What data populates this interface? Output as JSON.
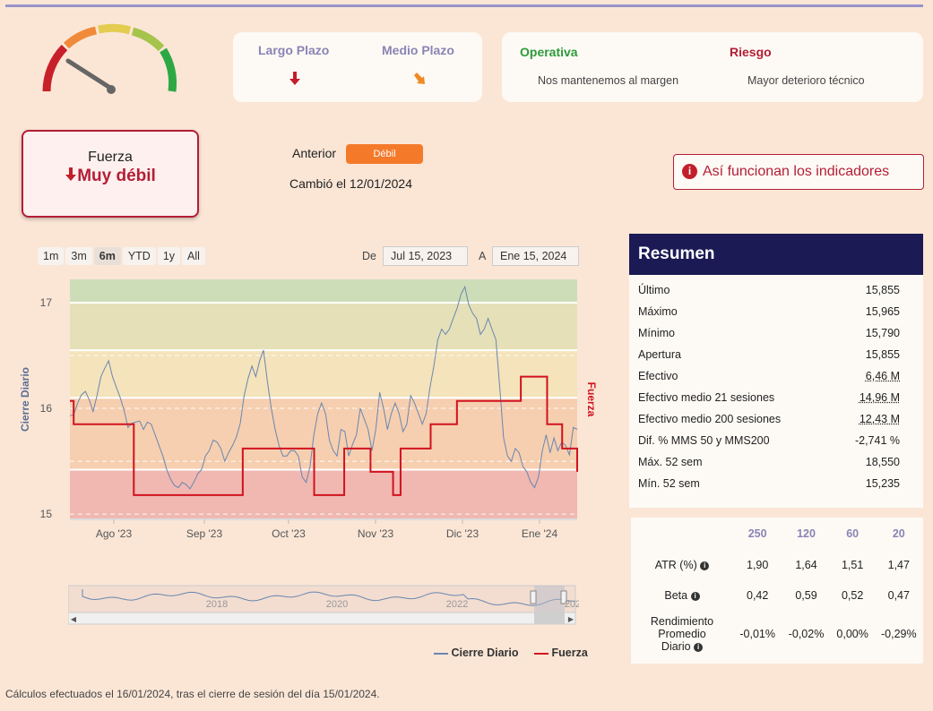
{
  "kpi": {
    "largo_plazo": "Largo Plazo",
    "medio_plazo": "Medio Plazo",
    "operativa_title": "Operativa",
    "operativa_text": "Nos mantenemos al margen",
    "riesgo_title": "Riesgo",
    "riesgo_text": "Mayor deterioro técnico",
    "colors": {
      "operativa": "#2e9a3a",
      "riesgo": "#b31e35",
      "down_red": "#c21f2b",
      "down_orange": "#f08a24"
    }
  },
  "fuerza": {
    "label": "Fuerza",
    "value": "Muy débil",
    "anterior_label": "Anterior",
    "anterior_value": "Débil",
    "cambio": "Cambió el 12/01/2024"
  },
  "link_indicadores": "Así funcionan los indicadores",
  "range_buttons": [
    "1m",
    "3m",
    "6m",
    "YTD",
    "1y",
    "All"
  ],
  "range_active": "6m",
  "date_range": {
    "from_label": "De",
    "from": "Jul 15, 2023",
    "to_label": "A",
    "to": "Ene 15, 2024"
  },
  "chart_data": {
    "type": "line",
    "ylabel": "Cierre Diario",
    "ylabel_right": "Fuerza",
    "y_ticks": [
      "15",
      "16",
      "17"
    ],
    "ylim": [
      14.95,
      17.22
    ],
    "x_ticks": [
      "Ago '23",
      "Sep '23",
      "Oct '23",
      "Nov '23",
      "Dic '23",
      "Ene '24"
    ],
    "bands": [
      {
        "from": 17.0,
        "to": 17.22,
        "color": "#cdddb8"
      },
      {
        "from": 16.55,
        "to": 17.0,
        "color": "#e5e0b8"
      },
      {
        "from": 16.1,
        "to": 16.55,
        "color": "#f4e3bb"
      },
      {
        "from": 15.42,
        "to": 16.1,
        "color": "#f6cfb0"
      },
      {
        "from": 14.95,
        "to": 15.42,
        "color": "#f0b8b0"
      }
    ],
    "series": [
      {
        "name": "Cierre Diario",
        "color": "#6a86b0",
        "values": [
          15.93,
          15.94,
          16.05,
          16.13,
          16.16,
          16.08,
          15.97,
          16.12,
          16.3,
          16.38,
          16.45,
          16.3,
          16.2,
          16.1,
          15.98,
          15.82,
          15.86,
          15.87,
          15.88,
          15.8,
          15.87,
          15.85,
          15.75,
          15.65,
          15.55,
          15.42,
          15.33,
          15.27,
          15.25,
          15.3,
          15.28,
          15.24,
          15.3,
          15.38,
          15.42,
          15.55,
          15.6,
          15.7,
          15.68,
          15.62,
          15.5,
          15.58,
          15.65,
          15.73,
          15.86,
          16.12,
          16.28,
          16.4,
          16.3,
          16.45,
          16.55,
          16.25,
          16.0,
          15.8,
          15.65,
          15.55,
          15.55,
          15.6,
          15.6,
          15.55,
          15.35,
          15.3,
          15.45,
          15.75,
          15.95,
          16.05,
          15.95,
          15.7,
          15.6,
          15.55,
          15.8,
          15.78,
          15.55,
          15.66,
          15.75,
          16.0,
          15.9,
          15.8,
          15.6,
          15.8,
          16.15,
          16.0,
          15.8,
          15.95,
          16.05,
          15.95,
          15.78,
          15.85,
          16.12,
          16.05,
          15.95,
          15.85,
          15.95,
          16.2,
          16.4,
          16.65,
          16.75,
          16.7,
          16.75,
          16.85,
          16.95,
          17.08,
          17.15,
          16.98,
          16.9,
          16.85,
          16.7,
          16.75,
          16.85,
          16.75,
          16.65,
          16.2,
          15.72,
          15.55,
          15.5,
          15.62,
          15.58,
          15.45,
          15.4,
          15.3,
          15.25,
          15.35,
          15.6,
          15.75,
          15.58,
          15.72,
          15.6,
          15.68,
          15.65,
          15.56,
          15.82,
          15.8
        ]
      },
      {
        "name": "Fuerza",
        "color": "#d1121f",
        "values": [
          16.07,
          15.85,
          15.85,
          15.85,
          15.85,
          15.85,
          15.85,
          15.85,
          15.85,
          15.85,
          15.85,
          15.85,
          15.85,
          15.85,
          15.85,
          15.85,
          15.85,
          15.18,
          15.18,
          15.18,
          15.18,
          15.18,
          15.18,
          15.18,
          15.18,
          15.18,
          15.18,
          15.18,
          15.18,
          15.18,
          15.18,
          15.18,
          15.18,
          15.18,
          15.18,
          15.18,
          15.18,
          15.18,
          15.18,
          15.18,
          15.18,
          15.18,
          15.18,
          15.18,
          15.18,
          15.18,
          15.62,
          15.62,
          15.62,
          15.62,
          15.62,
          15.62,
          15.62,
          15.62,
          15.62,
          15.62,
          15.62,
          15.62,
          15.62,
          15.62,
          15.62,
          15.62,
          15.62,
          15.62,
          15.62,
          15.18,
          15.18,
          15.18,
          15.18,
          15.18,
          15.18,
          15.18,
          15.18,
          15.62,
          15.62,
          15.62,
          15.62,
          15.62,
          15.62,
          15.62,
          15.4,
          15.4,
          15.4,
          15.4,
          15.4,
          15.4,
          15.18,
          15.18,
          15.62,
          15.62,
          15.62,
          15.62,
          15.62,
          15.62,
          15.62,
          15.62,
          15.85,
          15.85,
          15.85,
          15.85,
          15.85,
          15.85,
          15.85,
          16.07,
          16.07,
          16.07,
          16.07,
          16.07,
          16.07,
          16.07,
          16.07,
          16.07,
          16.07,
          16.07,
          16.07,
          16.07,
          16.07,
          16.07,
          16.07,
          16.07,
          16.3,
          16.3,
          16.3,
          16.3,
          16.3,
          16.3,
          16.3,
          15.85,
          15.85,
          15.85,
          15.85,
          15.62,
          15.62,
          15.62,
          15.62,
          15.4
        ]
      }
    ],
    "navigator_years": [
      "2018",
      "2020",
      "2022",
      "2024"
    ]
  },
  "legend": [
    "Cierre Diario",
    "Fuerza"
  ],
  "resumen": {
    "title": "Resumen",
    "rows": [
      {
        "label": "Último",
        "value": "15,855",
        "u": false
      },
      {
        "label": "Máximo",
        "value": "15,965",
        "u": false
      },
      {
        "label": "Mínimo",
        "value": "15,790",
        "u": false
      },
      {
        "label": "Apertura",
        "value": "15,855",
        "u": false
      },
      {
        "label": "Efectivo",
        "value": "6,46 M",
        "u": true
      },
      {
        "label": "Efectivo medio 21 sesiones",
        "value": "14,96 M",
        "u": true
      },
      {
        "label": "Efectivo medio 200 sesiones",
        "value": "12,43 M",
        "u": true
      },
      {
        "label": "Dif. % MMS 50 y MMS200",
        "value": "-2,741 %",
        "u": false
      },
      {
        "label": "Máx. 52 sem",
        "value": "18,550",
        "u": false
      },
      {
        "label": "Mín. 52 sem",
        "value": "15,235",
        "u": false
      }
    ]
  },
  "stats": {
    "headers": [
      "250",
      "120",
      "60",
      "20"
    ],
    "atr_label": "ATR (%)",
    "atr": [
      "1,90",
      "1,64",
      "1,51",
      "1,47"
    ],
    "beta_label": "Beta",
    "beta": [
      "0,42",
      "0,59",
      "0,52",
      "0,47"
    ],
    "rend_label_1": "Rendimiento",
    "rend_label_2": "Promedio",
    "rend_label_3": "Diario",
    "rend": [
      "-0,01%",
      "-0,02%",
      "0,00%",
      "-0,29%"
    ]
  },
  "footer": "Cálculos efectuados el 16/01/2024, tras el cierre de sesión del día 15/01/2024."
}
